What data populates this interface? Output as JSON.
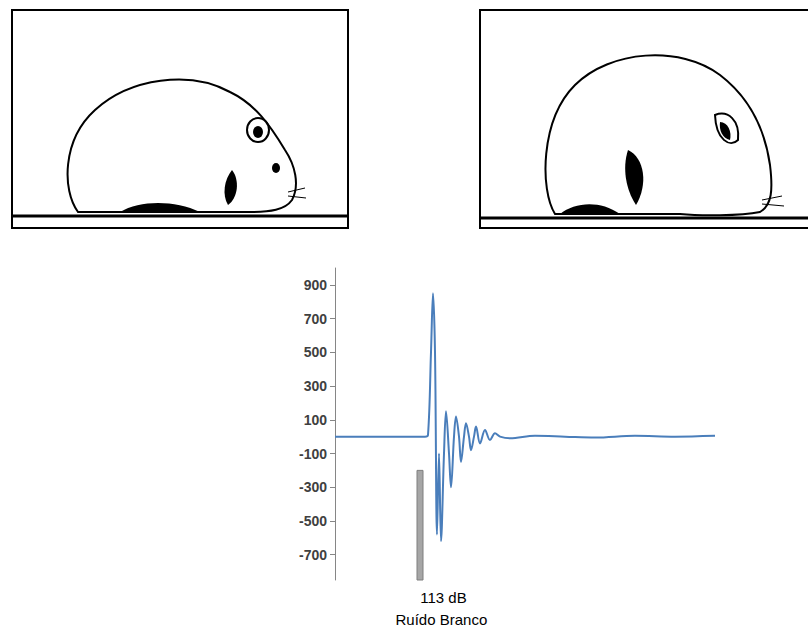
{
  "chart_data": {
    "type": "line",
    "x": [
      0,
      60,
      90,
      93,
      96,
      98,
      100,
      102,
      104,
      106,
      109,
      111,
      114,
      116,
      119,
      121,
      124,
      126,
      129,
      131,
      134,
      136,
      139,
      141,
      145,
      150,
      155,
      160,
      165,
      175,
      200,
      230,
      260,
      300,
      340,
      380
    ],
    "values": [
      0,
      0,
      0,
      10,
      500,
      850,
      500,
      -580,
      -100,
      -620,
      -100,
      150,
      -100,
      -300,
      0,
      120,
      0,
      -150,
      0,
      80,
      0,
      -80,
      0,
      60,
      -40,
      40,
      -20,
      20,
      0,
      -10,
      5,
      0,
      -5,
      5,
      0,
      5
    ],
    "color": "#4a7ebb",
    "xlim": [
      0,
      380
    ],
    "ylim": [
      -850,
      1000
    ],
    "yticks": [
      -700,
      -500,
      -300,
      -100,
      100,
      300,
      500,
      700,
      900
    ],
    "grid": false,
    "tick_labels": "y",
    "stimulus": {
      "x": [
        82,
        88
      ],
      "y": [
        -850,
        -200
      ],
      "color": "#a6a6a6"
    },
    "annotations": [
      "113 dB",
      "Ruído Branco"
    ]
  }
}
